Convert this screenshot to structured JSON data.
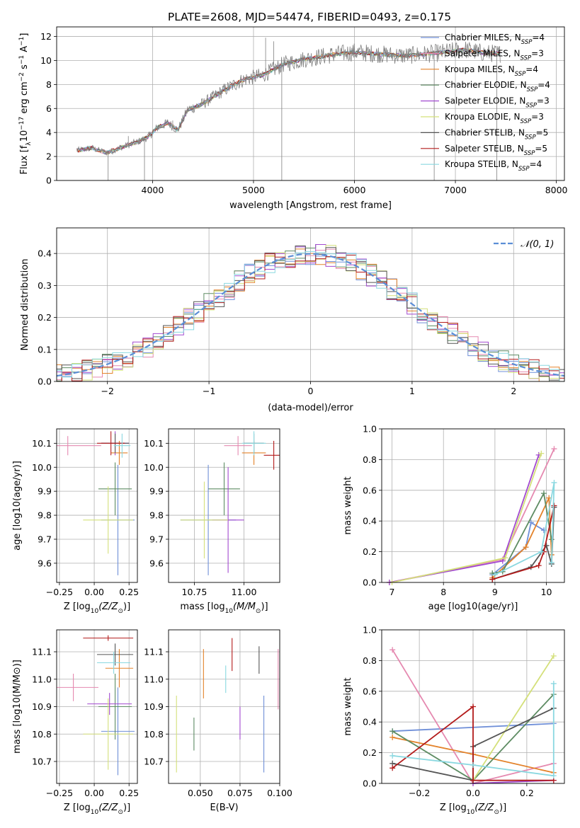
{
  "figure": {
    "title": "PLATE=2608, MJD=54474, FIBERID=0493, z=0.175",
    "legend_entries": [
      {
        "imf": "Chabrier",
        "lib": "MILES",
        "nssp": "4",
        "color": "#6f8fd8"
      },
      {
        "imf": "Salpeter",
        "lib": "MILES",
        "nssp": "3",
        "color": "#e589b0"
      },
      {
        "imf": "Kroupa",
        "lib": "MILES",
        "nssp": "4",
        "color": "#e3822a"
      },
      {
        "imf": "Chabrier",
        "lib": "ELODIE",
        "nssp": "4",
        "color": "#5e8c63"
      },
      {
        "imf": "Salpeter",
        "lib": "ELODIE",
        "nssp": "3",
        "color": "#a24ad0"
      },
      {
        "imf": "Kroupa",
        "lib": "ELODIE",
        "nssp": "3",
        "color": "#d4e07a"
      },
      {
        "imf": "Chabrier",
        "lib": "STELIB",
        "nssp": "5",
        "color": "#555555"
      },
      {
        "imf": "Salpeter",
        "lib": "STELIB",
        "nssp": "5",
        "color": "#b31b1b"
      },
      {
        "imf": "Kroupa",
        "lib": "STELIB",
        "nssp": "4",
        "color": "#8ad8e0"
      }
    ]
  },
  "chart_data": [
    {
      "id": "spectrum",
      "type": "line",
      "xlabel": "wavelength [Angstrom, rest frame]",
      "ylabel_main": "Flux [f",
      "ylabel_sub": "λ",
      "ylabel_rest": "10",
      "ylabel_sup": "−17",
      "ylabel_tail": " erg cm",
      "ylabel_sup2": "−2",
      "ylabel_tail2": " s",
      "ylabel_sup3": "−1",
      "ylabel_tail3": " A",
      "ylabel_sup4": "−1",
      "ylabel_end": "]",
      "xlim": [
        3050,
        8080
      ],
      "ylim": [
        0,
        12.8
      ],
      "xticks": [
        "3000",
        "4000",
        "5000",
        "6000",
        "7000",
        "8000"
      ],
      "yticks": [
        "0",
        "2",
        "4",
        "6",
        "8",
        "10",
        "12"
      ],
      "data_color": "#808080",
      "x_range": [
        3250,
        7450
      ],
      "shape": [
        [
          3250,
          2.5
        ],
        [
          3400,
          2.7
        ],
        [
          3550,
          2.3
        ],
        [
          3700,
          2.8
        ],
        [
          3850,
          3.2
        ],
        [
          3950,
          3.6
        ],
        [
          4050,
          4.4
        ],
        [
          4150,
          4.8
        ],
        [
          4250,
          4.2
        ],
        [
          4350,
          5.9
        ],
        [
          4500,
          6.4
        ],
        [
          4700,
          7.5
        ],
        [
          4900,
          8.4
        ],
        [
          5100,
          8.8
        ],
        [
          5300,
          9.7
        ],
        [
          5500,
          10.1
        ],
        [
          5800,
          10.5
        ],
        [
          6000,
          10.7
        ],
        [
          6300,
          10.5
        ],
        [
          6500,
          10.4
        ],
        [
          6800,
          10.6
        ],
        [
          7100,
          10.9
        ],
        [
          7300,
          10.6
        ],
        [
          7450,
          10.6
        ]
      ],
      "dips": [
        [
          3560,
          0
        ],
        [
          3920,
          0
        ],
        [
          5280,
          0
        ],
        [
          6790,
          0
        ],
        [
          7410,
          0
        ]
      ],
      "peaks": [
        [
          3760,
          3.7
        ],
        [
          4200,
          5.0
        ],
        [
          5120,
          11.9
        ],
        [
          5200,
          11.6
        ]
      ]
    },
    {
      "id": "residuals",
      "type": "histogram",
      "xlabel": "(data-model)/error",
      "ylabel": "Normed distribution",
      "xlim": [
        -2.5,
        2.5
      ],
      "ylim": [
        0,
        0.48
      ],
      "xticks": [
        -2,
        -1,
        0,
        1,
        2
      ],
      "xticklabels": [
        "−2",
        "−1",
        "0",
        "1",
        "2"
      ],
      "yticks": [
        0.0,
        0.1,
        0.2,
        0.3,
        0.4
      ],
      "yticklabels": [
        "0.0",
        "0.1",
        "0.2",
        "0.3",
        "0.4"
      ],
      "legend_label": "𝒩(0, 1)",
      "gauss_color": "#5b8ed6",
      "bin_width": 0.1
    },
    {
      "id": "age_vs_Z",
      "type": "errorbar",
      "xlabel_main": "Z [log",
      "xlabel_sub": "10",
      "xlabel_tail": "(Z/Z",
      "xlabel_sun": "⊙",
      "xlabel_end": ")]",
      "ylabel": "age  [log10(age/yr)]",
      "xlim": [
        -0.27,
        0.31
      ],
      "ylim": [
        9.52,
        10.16
      ],
      "xticks": [
        -0.25,
        0.0,
        0.25
      ],
      "xticklabels": [
        "−0.25",
        "0.00",
        "0.25"
      ],
      "yticks": [
        9.6,
        9.7,
        9.8,
        9.9,
        10.0,
        10.1
      ],
      "yticklabels": [
        "9.6",
        "9.7",
        "9.8",
        "9.9",
        "10.0",
        "10.1"
      ],
      "points": [
        {
          "x": 0.17,
          "xe": 0.12,
          "y": 9.78,
          "ye": 0.23
        },
        {
          "x": -0.19,
          "xe": 0.24,
          "y": 10.09,
          "ye": 0.04
        },
        {
          "x": 0.18,
          "xe": 0.06,
          "y": 10.06,
          "ye": 0.05
        },
        {
          "x": 0.15,
          "xe": 0.12,
          "y": 9.91,
          "ye": 0.11
        },
        {
          "x": 0.15,
          "xe": 0.1,
          "y": 10.1,
          "ye": 0.05
        },
        {
          "x": 0.1,
          "xe": 0.18,
          "y": 9.78,
          "ye": 0.14
        },
        {
          "x": 0.15,
          "xe": 0.1,
          "y": 10.1,
          "ye": 0.04
        },
        {
          "x": 0.12,
          "xe": 0.1,
          "y": 10.1,
          "ye": 0.05
        },
        {
          "x": 0.2,
          "xe": 0.06,
          "y": 10.09,
          "ye": 0.05
        }
      ]
    },
    {
      "id": "age_vs_mass",
      "type": "errorbar",
      "xlabel_main": "mass [log",
      "xlabel_sub": "10",
      "xlabel_tail": "(M/M",
      "xlabel_sun": "⊙",
      "xlabel_end": ")]",
      "ylabel": "",
      "xlim": [
        10.62,
        11.18
      ],
      "ylim": [
        9.52,
        10.16
      ],
      "xticks": [
        10.75,
        11.0
      ],
      "xticklabels": [
        "10.75",
        "11.00"
      ],
      "yticks": [
        9.6,
        9.7,
        9.8,
        9.9,
        10.0,
        10.1
      ],
      "yticklabels": [
        "9.6",
        "9.7",
        "9.8",
        "9.9",
        "10.0",
        "10.1"
      ],
      "points": [
        {
          "x": 10.82,
          "xe": 0.14,
          "y": 9.78,
          "ye": 0.23
        },
        {
          "x": 10.97,
          "xe": 0.07,
          "y": 10.09,
          "ye": 0.04
        },
        {
          "x": 11.05,
          "xe": 0.06,
          "y": 10.06,
          "ye": 0.05
        },
        {
          "x": 10.9,
          "xe": 0.08,
          "y": 9.91,
          "ye": 0.11
        },
        {
          "x": 10.92,
          "xe": 0.08,
          "y": 9.78,
          "ye": 0.22
        },
        {
          "x": 10.8,
          "xe": 0.12,
          "y": 9.78,
          "ye": 0.16
        },
        {
          "x": 11.05,
          "xe": 0.05,
          "y": 10.1,
          "ye": 0.04
        },
        {
          "x": 11.15,
          "xe": 0.05,
          "y": 10.05,
          "ye": 0.06
        },
        {
          "x": 11.05,
          "xe": 0.06,
          "y": 10.1,
          "ye": 0.05
        }
      ]
    },
    {
      "id": "weight_vs_age",
      "type": "line",
      "xlabel": "age  [log10(age/yr)]",
      "ylabel": "mass weight",
      "xlim": [
        6.8,
        10.35
      ],
      "ylim": [
        0,
        1
      ],
      "xticks": [
        7,
        8,
        9,
        10
      ],
      "xticklabels": [
        "7",
        "8",
        "9",
        "10"
      ],
      "yticks": [
        0.0,
        0.2,
        0.4,
        0.6,
        0.8,
        1.0
      ],
      "yticklabels": [
        "0.0",
        "0.2",
        "0.4",
        "0.6",
        "0.8",
        "1.0"
      ],
      "series": [
        {
          "points": [
            [
              8.95,
              0.05
            ],
            [
              9.6,
              0.23
            ],
            [
              9.7,
              0.39
            ],
            [
              9.95,
              0.34
            ]
          ]
        },
        {
          "points": [
            [
              6.95,
              0.0
            ],
            [
              9.15,
              0.15
            ],
            [
              10.15,
              0.87
            ]
          ]
        },
        {
          "points": [
            [
              8.95,
              0.03
            ],
            [
              9.6,
              0.23
            ],
            [
              10.05,
              0.55
            ],
            [
              10.1,
              0.18
            ]
          ]
        },
        {
          "points": [
            [
              8.95,
              0.06
            ],
            [
              9.15,
              0.07
            ],
            [
              9.95,
              0.58
            ],
            [
              10.1,
              0.28
            ]
          ]
        },
        {
          "points": [
            [
              6.95,
              0.0
            ],
            [
              9.15,
              0.14
            ],
            [
              9.85,
              0.83
            ]
          ]
        },
        {
          "points": [
            [
              7.0,
              0.0
            ],
            [
              9.2,
              0.16
            ],
            [
              9.9,
              0.84
            ]
          ]
        },
        {
          "points": [
            [
              8.95,
              0.02
            ],
            [
              9.7,
              0.1
            ],
            [
              10.0,
              0.24
            ],
            [
              10.1,
              0.12
            ],
            [
              10.15,
              0.49
            ]
          ]
        },
        {
          "points": [
            [
              8.95,
              0.02
            ],
            [
              9.85,
              0.11
            ],
            [
              9.95,
              0.2
            ],
            [
              10.15,
              0.5
            ]
          ]
        },
        {
          "points": [
            [
              9.0,
              0.05
            ],
            [
              9.9,
              0.2
            ],
            [
              10.15,
              0.65
            ],
            [
              10.1,
              0.13
            ]
          ]
        }
      ]
    },
    {
      "id": "mass_vs_Z",
      "type": "errorbar",
      "xlabel_main": "Z [log",
      "xlabel_sub": "10",
      "xlabel_tail": "(Z/Z",
      "xlabel_sun": "⊙",
      "xlabel_end": ")]",
      "ylabel": "mass [log10(M/M⊙)]",
      "xlim": [
        -0.27,
        0.31
      ],
      "ylim": [
        10.62,
        11.18
      ],
      "xticks": [
        -0.25,
        0.0,
        0.25
      ],
      "xticklabels": [
        "−0.25",
        "0.00",
        "0.25"
      ],
      "yticks": [
        10.7,
        10.8,
        10.9,
        11.0,
        11.1
      ],
      "yticklabels": [
        "10.7",
        "10.8",
        "10.9",
        "11.0",
        "11.1"
      ],
      "points": [
        {
          "x": 0.17,
          "xe": 0.12,
          "y": 10.81,
          "ye": 0.16
        },
        {
          "x": -0.15,
          "xe": 0.18,
          "y": 10.97,
          "ye": 0.05
        },
        {
          "x": 0.18,
          "xe": 0.1,
          "y": 11.04,
          "ye": 0.07
        },
        {
          "x": 0.15,
          "xe": 0.12,
          "y": 10.9,
          "ye": 0.12
        },
        {
          "x": 0.11,
          "xe": 0.16,
          "y": 10.91,
          "ye": 0.04
        },
        {
          "x": 0.1,
          "xe": 0.18,
          "y": 10.8,
          "ye": 0.13
        },
        {
          "x": 0.15,
          "xe": 0.13,
          "y": 11.09,
          "ye": 0.04
        },
        {
          "x": 0.1,
          "xe": 0.18,
          "y": 11.15,
          "ye": 0.01
        },
        {
          "x": 0.14,
          "xe": 0.12,
          "y": 11.06,
          "ye": 0.04
        }
      ]
    },
    {
      "id": "mass_vs_EBV",
      "type": "errorbar",
      "xlabel": "E(B-V)",
      "ylabel": "",
      "xlim": [
        0.03,
        0.1
      ],
      "ylim": [
        10.62,
        11.18
      ],
      "xticks": [
        0.05,
        0.075,
        0.1
      ],
      "xticklabels": [
        "0.050",
        "0.075",
        "0.100"
      ],
      "yticks": [
        10.7,
        10.8,
        10.9,
        11.0,
        11.1
      ],
      "yticklabels": [
        "10.7",
        "10.8",
        "10.9",
        "11.0",
        "11.1"
      ],
      "points": [
        {
          "x": 0.09,
          "xe": 0,
          "y": 10.8,
          "ye": 0.14
        },
        {
          "x": 0.099,
          "xe": 0,
          "y": 11.0,
          "ye": 0.11
        },
        {
          "x": 0.052,
          "xe": 0,
          "y": 11.02,
          "ye": 0.09
        },
        {
          "x": 0.046,
          "xe": 0,
          "y": 10.8,
          "ye": 0.06
        },
        {
          "x": 0.075,
          "xe": 0,
          "y": 10.84,
          "ye": 0.06
        },
        {
          "x": 0.035,
          "xe": 0,
          "y": 10.8,
          "ye": 0.14
        },
        {
          "x": 0.087,
          "xe": 0,
          "y": 11.07,
          "ye": 0.05
        },
        {
          "x": 0.07,
          "xe": 0,
          "y": 11.09,
          "ye": 0.06
        },
        {
          "x": 0.066,
          "xe": 0,
          "y": 11.0,
          "ye": 0.05
        }
      ]
    },
    {
      "id": "weight_vs_Z",
      "type": "line",
      "xlabel_main": "Z [log",
      "xlabel_sub": "10",
      "xlabel_tail": "(Z/Z",
      "xlabel_sun": "⊙",
      "xlabel_end": ")]",
      "ylabel": "mass weight",
      "xlim": [
        -0.34,
        0.34
      ],
      "ylim": [
        0,
        1
      ],
      "xticks": [
        -0.2,
        0.0,
        0.2
      ],
      "xticklabels": [
        "−0.2",
        "0.0",
        "0.2"
      ],
      "yticks": [
        0.0,
        0.2,
        0.4,
        0.6,
        0.8,
        1.0
      ],
      "yticklabels": [
        "0.0",
        "0.2",
        "0.4",
        "0.6",
        "0.8",
        "1.0"
      ],
      "series": [
        {
          "points": [
            [
              -0.3,
              0.34
            ],
            [
              0.3,
              0.39
            ]
          ]
        },
        {
          "points": [
            [
              -0.3,
              0.87
            ],
            [
              0.0,
              0.0
            ],
            [
              0.3,
              0.13
            ]
          ]
        },
        {
          "points": [
            [
              -0.3,
              0.3
            ],
            [
              0.0,
              0.19
            ],
            [
              0.3,
              0.07
            ]
          ]
        },
        {
          "points": [
            [
              -0.3,
              0.34
            ],
            [
              0.0,
              0.02
            ],
            [
              0.3,
              0.58
            ]
          ]
        },
        {
          "points": [
            [
              0.0,
              0.0
            ],
            [
              0.3,
              0.02
            ]
          ]
        },
        {
          "points": [
            [
              0.0,
              0.02
            ],
            [
              0.3,
              0.83
            ]
          ]
        },
        {
          "points": [
            [
              -0.3,
              0.13
            ],
            [
              0.0,
              0.02
            ],
            [
              0.0,
              0.24
            ],
            [
              0.3,
              0.49
            ]
          ]
        },
        {
          "points": [
            [
              -0.3,
              0.1
            ],
            [
              0.0,
              0.5
            ],
            [
              0.0,
              0.02
            ],
            [
              0.3,
              0.02
            ]
          ]
        },
        {
          "points": [
            [
              -0.3,
              0.18
            ],
            [
              0.0,
              0.12
            ],
            [
              0.3,
              0.05
            ],
            [
              0.3,
              0.65
            ]
          ]
        }
      ]
    }
  ]
}
